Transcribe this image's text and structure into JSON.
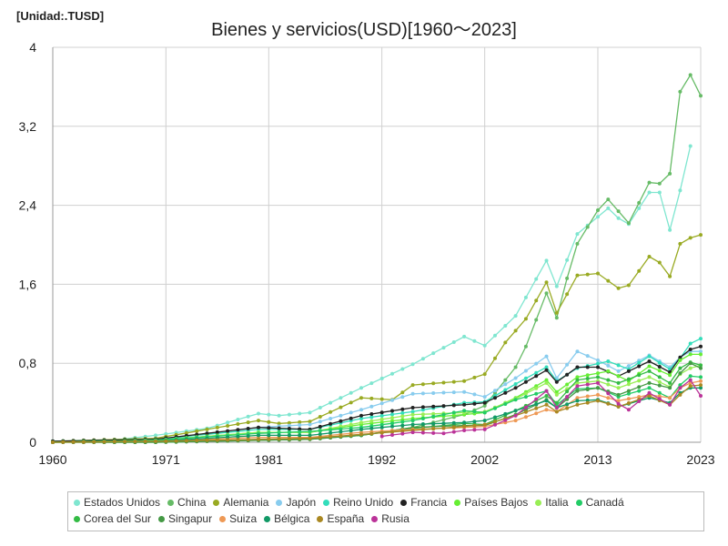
{
  "chart_data": {
    "type": "line",
    "title": "Bienes y servicios(USD)[1960～2023]",
    "unit_label": "[Unidad:.TUSD]",
    "xlim": [
      1960,
      2023
    ],
    "ylim": [
      0,
      4
    ],
    "x_ticks": [
      "1960",
      "1971",
      "1981",
      "1992",
      "2002",
      "2013",
      "2023"
    ],
    "y_ticks": [
      "0",
      "0,8",
      "1,6",
      "2,4",
      "3,2",
      "4"
    ],
    "grid": true,
    "legend_position": "bottom",
    "series": [
      {
        "name": "Estados Unidos",
        "color": "#7fe6d0",
        "points": [
          [
            1960,
            0.01
          ],
          [
            1965,
            0.01
          ],
          [
            1970,
            0.07
          ],
          [
            1975,
            0.14
          ],
          [
            1980,
            0.29
          ],
          [
            1982,
            0.27
          ],
          [
            1985,
            0.3
          ],
          [
            1990,
            0.55
          ],
          [
            1995,
            0.79
          ],
          [
            2000,
            1.07
          ],
          [
            2002,
            0.98
          ],
          [
            2005,
            1.28
          ],
          [
            2008,
            1.84
          ],
          [
            2009,
            1.58
          ],
          [
            2011,
            2.11
          ],
          [
            2014,
            2.37
          ],
          [
            2015,
            2.27
          ],
          [
            2016,
            2.21
          ],
          [
            2018,
            2.53
          ],
          [
            2019,
            2.53
          ],
          [
            2020,
            2.15
          ],
          [
            2021,
            2.55
          ],
          [
            2022,
            3.0
          ]
        ]
      },
      {
        "name": "China",
        "color": "#66bb66",
        "points": [
          [
            1960,
            0.0
          ],
          [
            1970,
            0.0
          ],
          [
            1980,
            0.02
          ],
          [
            1990,
            0.07
          ],
          [
            1995,
            0.15
          ],
          [
            2000,
            0.28
          ],
          [
            2002,
            0.37
          ],
          [
            2005,
            0.76
          ],
          [
            2006,
            0.97
          ],
          [
            2008,
            1.51
          ],
          [
            2009,
            1.26
          ],
          [
            2010,
            1.66
          ],
          [
            2011,
            2.01
          ],
          [
            2013,
            2.35
          ],
          [
            2014,
            2.46
          ],
          [
            2016,
            2.22
          ],
          [
            2018,
            2.63
          ],
          [
            2019,
            2.62
          ],
          [
            2020,
            2.72
          ],
          [
            2021,
            3.55
          ],
          [
            2022,
            3.72
          ],
          [
            2023,
            3.51
          ]
        ]
      },
      {
        "name": "Alemania",
        "color": "#99aa22",
        "points": [
          [
            1960,
            0.01
          ],
          [
            1970,
            0.04
          ],
          [
            1980,
            0.22
          ],
          [
            1982,
            0.19
          ],
          [
            1985,
            0.21
          ],
          [
            1990,
            0.45
          ],
          [
            1993,
            0.43
          ],
          [
            1995,
            0.58
          ],
          [
            2000,
            0.62
          ],
          [
            2002,
            0.69
          ],
          [
            2004,
            1.01
          ],
          [
            2006,
            1.25
          ],
          [
            2008,
            1.62
          ],
          [
            2009,
            1.31
          ],
          [
            2011,
            1.69
          ],
          [
            2013,
            1.71
          ],
          [
            2015,
            1.56
          ],
          [
            2016,
            1.59
          ],
          [
            2018,
            1.88
          ],
          [
            2019,
            1.82
          ],
          [
            2020,
            1.68
          ],
          [
            2021,
            2.01
          ],
          [
            2022,
            2.07
          ],
          [
            2023,
            2.1
          ]
        ]
      },
      {
        "name": "Japón",
        "color": "#88ccee",
        "points": [
          [
            1960,
            0.0
          ],
          [
            1970,
            0.02
          ],
          [
            1980,
            0.15
          ],
          [
            1985,
            0.18
          ],
          [
            1990,
            0.33
          ],
          [
            1995,
            0.49
          ],
          [
            2000,
            0.51
          ],
          [
            2002,
            0.46
          ],
          [
            2005,
            0.65
          ],
          [
            2008,
            0.87
          ],
          [
            2009,
            0.65
          ],
          [
            2011,
            0.92
          ],
          [
            2013,
            0.83
          ],
          [
            2015,
            0.72
          ],
          [
            2018,
            0.88
          ],
          [
            2020,
            0.76
          ],
          [
            2021,
            0.86
          ],
          [
            2022,
            0.92
          ],
          [
            2023,
            0.92
          ]
        ]
      },
      {
        "name": "Reino Unido",
        "color": "#33ddbb",
        "points": [
          [
            1960,
            0.01
          ],
          [
            1970,
            0.03
          ],
          [
            1980,
            0.13
          ],
          [
            1985,
            0.13
          ],
          [
            1990,
            0.24
          ],
          [
            1995,
            0.31
          ],
          [
            2000,
            0.4
          ],
          [
            2002,
            0.41
          ],
          [
            2005,
            0.59
          ],
          [
            2008,
            0.76
          ],
          [
            2009,
            0.62
          ],
          [
            2011,
            0.75
          ],
          [
            2014,
            0.82
          ],
          [
            2016,
            0.74
          ],
          [
            2018,
            0.87
          ],
          [
            2020,
            0.74
          ],
          [
            2021,
            0.85
          ],
          [
            2022,
            1.0
          ],
          [
            2023,
            1.05
          ]
        ]
      },
      {
        "name": "Francia",
        "color": "#222222",
        "points": [
          [
            1960,
            0.01
          ],
          [
            1970,
            0.03
          ],
          [
            1980,
            0.15
          ],
          [
            1985,
            0.13
          ],
          [
            1990,
            0.27
          ],
          [
            1995,
            0.35
          ],
          [
            2000,
            0.38
          ],
          [
            2002,
            0.4
          ],
          [
            2005,
            0.55
          ],
          [
            2008,
            0.73
          ],
          [
            2009,
            0.61
          ],
          [
            2011,
            0.76
          ],
          [
            2013,
            0.76
          ],
          [
            2015,
            0.67
          ],
          [
            2018,
            0.82
          ],
          [
            2020,
            0.71
          ],
          [
            2021,
            0.86
          ],
          [
            2022,
            0.94
          ],
          [
            2023,
            0.97
          ]
        ]
      },
      {
        "name": "Países Bajos",
        "color": "#66ee33",
        "points": [
          [
            1960,
            0.0
          ],
          [
            1970,
            0.02
          ],
          [
            1980,
            0.1
          ],
          [
            1985,
            0.1
          ],
          [
            1990,
            0.18
          ],
          [
            1995,
            0.24
          ],
          [
            2000,
            0.28
          ],
          [
            2002,
            0.3
          ],
          [
            2005,
            0.45
          ],
          [
            2008,
            0.63
          ],
          [
            2009,
            0.51
          ],
          [
            2011,
            0.66
          ],
          [
            2014,
            0.72
          ],
          [
            2016,
            0.62
          ],
          [
            2018,
            0.77
          ],
          [
            2020,
            0.68
          ],
          [
            2021,
            0.83
          ],
          [
            2022,
            0.89
          ],
          [
            2023,
            0.89
          ]
        ]
      },
      {
        "name": "Italia",
        "color": "#99ee55",
        "points": [
          [
            1960,
            0.0
          ],
          [
            1970,
            0.02
          ],
          [
            1980,
            0.1
          ],
          [
            1985,
            0.1
          ],
          [
            1990,
            0.2
          ],
          [
            1995,
            0.28
          ],
          [
            2000,
            0.3
          ],
          [
            2002,
            0.31
          ],
          [
            2005,
            0.44
          ],
          [
            2008,
            0.6
          ],
          [
            2009,
            0.48
          ],
          [
            2011,
            0.6
          ],
          [
            2013,
            0.62
          ],
          [
            2015,
            0.55
          ],
          [
            2018,
            0.66
          ],
          [
            2020,
            0.56
          ],
          [
            2021,
            0.69
          ],
          [
            2022,
            0.75
          ],
          [
            2023,
            0.78
          ]
        ]
      },
      {
        "name": "Canadá",
        "color": "#22cc66",
        "points": [
          [
            1960,
            0.0
          ],
          [
            1970,
            0.02
          ],
          [
            1980,
            0.09
          ],
          [
            1985,
            0.11
          ],
          [
            1990,
            0.15
          ],
          [
            1995,
            0.22
          ],
          [
            2000,
            0.32
          ],
          [
            2002,
            0.3
          ],
          [
            2005,
            0.43
          ],
          [
            2008,
            0.52
          ],
          [
            2009,
            0.38
          ],
          [
            2011,
            0.54
          ],
          [
            2013,
            0.55
          ],
          [
            2015,
            0.46
          ],
          [
            2018,
            0.55
          ],
          [
            2020,
            0.45
          ],
          [
            2021,
            0.58
          ],
          [
            2022,
            0.67
          ],
          [
            2023,
            0.66
          ]
        ]
      },
      {
        "name": "Corea del Sur",
        "color": "#33bb44",
        "points": [
          [
            1960,
            0.0
          ],
          [
            1970,
            0.0
          ],
          [
            1980,
            0.02
          ],
          [
            1985,
            0.03
          ],
          [
            1990,
            0.07
          ],
          [
            1995,
            0.14
          ],
          [
            2000,
            0.19
          ],
          [
            2002,
            0.18
          ],
          [
            2005,
            0.32
          ],
          [
            2008,
            0.47
          ],
          [
            2009,
            0.4
          ],
          [
            2011,
            0.63
          ],
          [
            2013,
            0.66
          ],
          [
            2015,
            0.6
          ],
          [
            2018,
            0.72
          ],
          [
            2020,
            0.6
          ],
          [
            2021,
            0.75
          ],
          [
            2022,
            0.81
          ],
          [
            2023,
            0.78
          ]
        ]
      },
      {
        "name": "Singapur",
        "color": "#449944",
        "points": [
          [
            1960,
            0.0
          ],
          [
            1970,
            0.0
          ],
          [
            1980,
            0.02
          ],
          [
            1985,
            0.03
          ],
          [
            1990,
            0.07
          ],
          [
            1995,
            0.15
          ],
          [
            2000,
            0.17
          ],
          [
            2002,
            0.17
          ],
          [
            2005,
            0.28
          ],
          [
            2008,
            0.43
          ],
          [
            2009,
            0.35
          ],
          [
            2011,
            0.52
          ],
          [
            2013,
            0.55
          ],
          [
            2015,
            0.48
          ],
          [
            2018,
            0.6
          ],
          [
            2020,
            0.55
          ],
          [
            2021,
            0.7
          ],
          [
            2022,
            0.8
          ],
          [
            2023,
            0.75
          ]
        ]
      },
      {
        "name": "Suiza",
        "color": "#ee9955",
        "points": [
          [
            1960,
            0.0
          ],
          [
            1970,
            0.01
          ],
          [
            1980,
            0.05
          ],
          [
            1985,
            0.05
          ],
          [
            1990,
            0.1
          ],
          [
            1995,
            0.13
          ],
          [
            2000,
            0.15
          ],
          [
            2002,
            0.16
          ],
          [
            2005,
            0.22
          ],
          [
            2008,
            0.33
          ],
          [
            2009,
            0.31
          ],
          [
            2011,
            0.45
          ],
          [
            2013,
            0.48
          ],
          [
            2015,
            0.42
          ],
          [
            2018,
            0.48
          ],
          [
            2020,
            0.45
          ],
          [
            2021,
            0.55
          ],
          [
            2022,
            0.6
          ],
          [
            2023,
            0.62
          ]
        ]
      },
      {
        "name": "Bélgica",
        "color": "#119966",
        "points": [
          [
            1960,
            0.0
          ],
          [
            1970,
            0.01
          ],
          [
            1980,
            0.07
          ],
          [
            1985,
            0.07
          ],
          [
            1990,
            0.13
          ],
          [
            1995,
            0.18
          ],
          [
            2000,
            0.2
          ],
          [
            2002,
            0.22
          ],
          [
            2005,
            0.32
          ],
          [
            2008,
            0.42
          ],
          [
            2009,
            0.35
          ],
          [
            2011,
            0.42
          ],
          [
            2013,
            0.43
          ],
          [
            2015,
            0.36
          ],
          [
            2018,
            0.45
          ],
          [
            2020,
            0.4
          ],
          [
            2021,
            0.5
          ],
          [
            2022,
            0.55
          ],
          [
            2023,
            0.55
          ]
        ]
      },
      {
        "name": "España",
        "color": "#aa8822",
        "points": [
          [
            1960,
            0.0
          ],
          [
            1970,
            0.01
          ],
          [
            1980,
            0.03
          ],
          [
            1985,
            0.04
          ],
          [
            1990,
            0.08
          ],
          [
            1995,
            0.12
          ],
          [
            2000,
            0.16
          ],
          [
            2002,
            0.18
          ],
          [
            2005,
            0.27
          ],
          [
            2008,
            0.38
          ],
          [
            2009,
            0.31
          ],
          [
            2011,
            0.38
          ],
          [
            2013,
            0.42
          ],
          [
            2015,
            0.36
          ],
          [
            2018,
            0.47
          ],
          [
            2020,
            0.38
          ],
          [
            2021,
            0.48
          ],
          [
            2022,
            0.57
          ],
          [
            2023,
            0.58
          ]
        ]
      },
      {
        "name": "Rusia",
        "color": "#bb3399",
        "points": [
          [
            1992,
            0.06
          ],
          [
            1995,
            0.1
          ],
          [
            1998,
            0.09
          ],
          [
            2000,
            0.12
          ],
          [
            2002,
            0.13
          ],
          [
            2005,
            0.27
          ],
          [
            2008,
            0.52
          ],
          [
            2009,
            0.35
          ],
          [
            2011,
            0.57
          ],
          [
            2013,
            0.6
          ],
          [
            2015,
            0.39
          ],
          [
            2016,
            0.33
          ],
          [
            2018,
            0.5
          ],
          [
            2020,
            0.38
          ],
          [
            2021,
            0.55
          ],
          [
            2022,
            0.63
          ],
          [
            2023,
            0.47
          ]
        ]
      }
    ]
  }
}
